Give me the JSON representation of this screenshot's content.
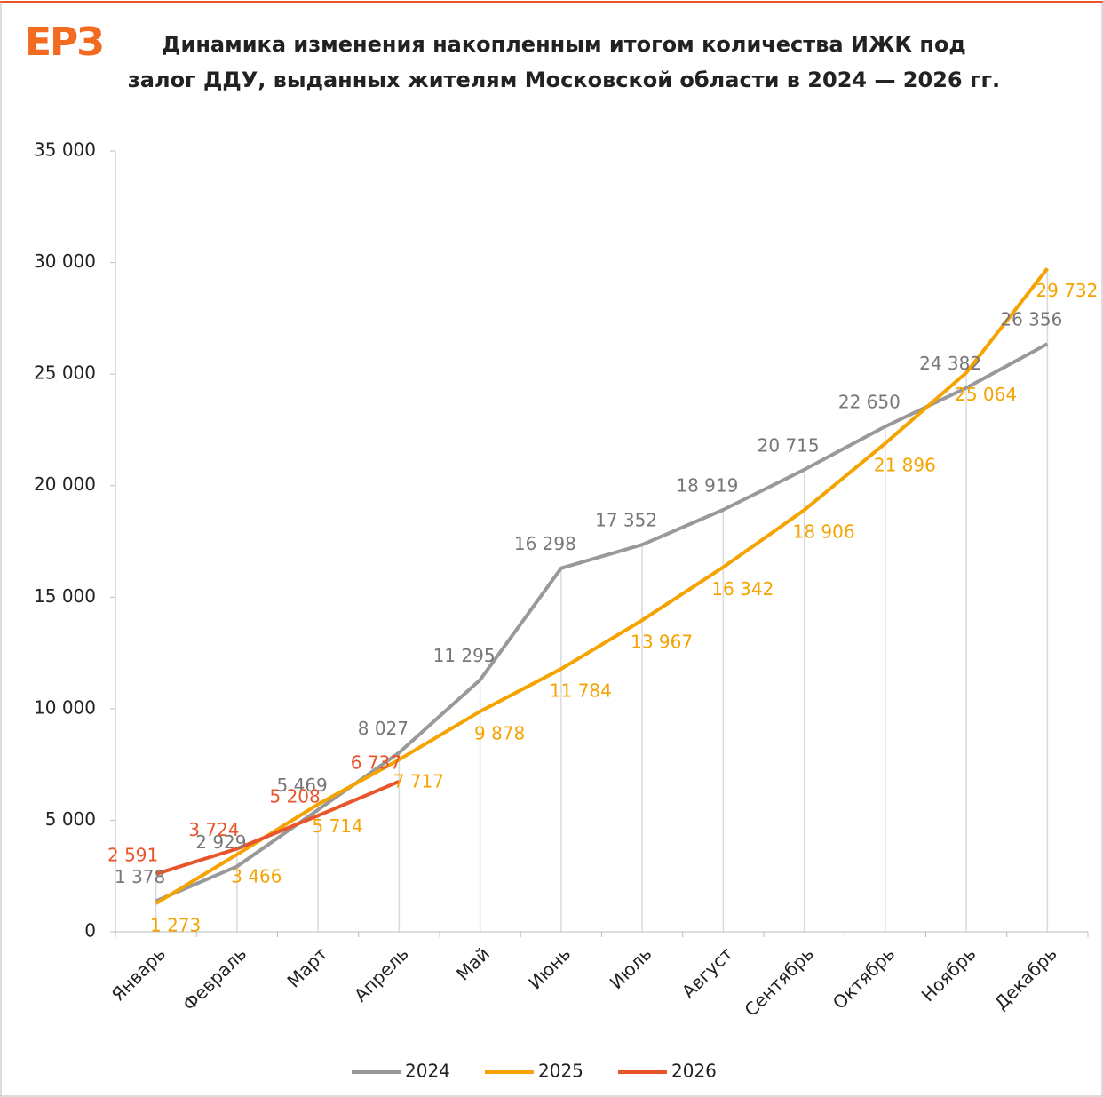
{
  "chart_data": {
    "type": "line",
    "logo": "ЕРЗ",
    "title": "Динамика изменения накопленным итогом количества ИЖК под залог ДДУ, выданных жителям Московской области в 2024 — 2026 гг.",
    "categories": [
      "Январь",
      "Февраль",
      "Март",
      "Апрель",
      "Май",
      "Июнь",
      "Июль",
      "Август",
      "Сентябрь",
      "Октябрь",
      "Ноябрь",
      "Декабрь"
    ],
    "series": [
      {
        "name": "2024",
        "color": "#999999",
        "values": [
          1378,
          2929,
          5469,
          8027,
          11295,
          16298,
          17352,
          18919,
          20715,
          22650,
          24382,
          26356
        ],
        "value_labels": [
          "1 378",
          "2 929",
          "5 469",
          "8 027",
          "11 295",
          "16 298",
          "17 352",
          "18 919",
          "20 715",
          "22 650",
          "24 382",
          "26 356"
        ]
      },
      {
        "name": "2025",
        "color": "#f5a300",
        "values": [
          1273,
          3466,
          5714,
          7717,
          9878,
          11784,
          13967,
          16342,
          18906,
          21896,
          25064,
          29732
        ],
        "value_labels": [
          "1 273",
          "3 466",
          "5 714",
          "7 717",
          "9 878",
          "11 784",
          "13 967",
          "16 342",
          "18 906",
          "21 896",
          "25 064",
          "29 732"
        ]
      },
      {
        "name": "2026",
        "color": "#e9552b",
        "values": [
          2591,
          3724,
          5208,
          6737,
          null,
          null,
          null,
          null,
          null,
          null,
          null,
          null
        ],
        "value_labels": [
          "2 591",
          "3 724",
          "5 208",
          "6 737",
          null,
          null,
          null,
          null,
          null,
          null,
          null,
          null
        ]
      }
    ],
    "ylim": [
      0,
      35000
    ],
    "yticks": [
      0,
      {
        "value": 5000,
        "label": "5 000"
      },
      {
        "value": 10000,
        "label": "10 000"
      },
      {
        "value": 15000,
        "label": "15 000"
      },
      {
        "value": 20000,
        "label": "20 000"
      },
      {
        "value": 25000,
        "label": "25 000"
      },
      {
        "value": 30000,
        "label": "30 000"
      },
      {
        "value": 35000,
        "label": "35 000"
      }
    ],
    "legend": "bottom"
  }
}
